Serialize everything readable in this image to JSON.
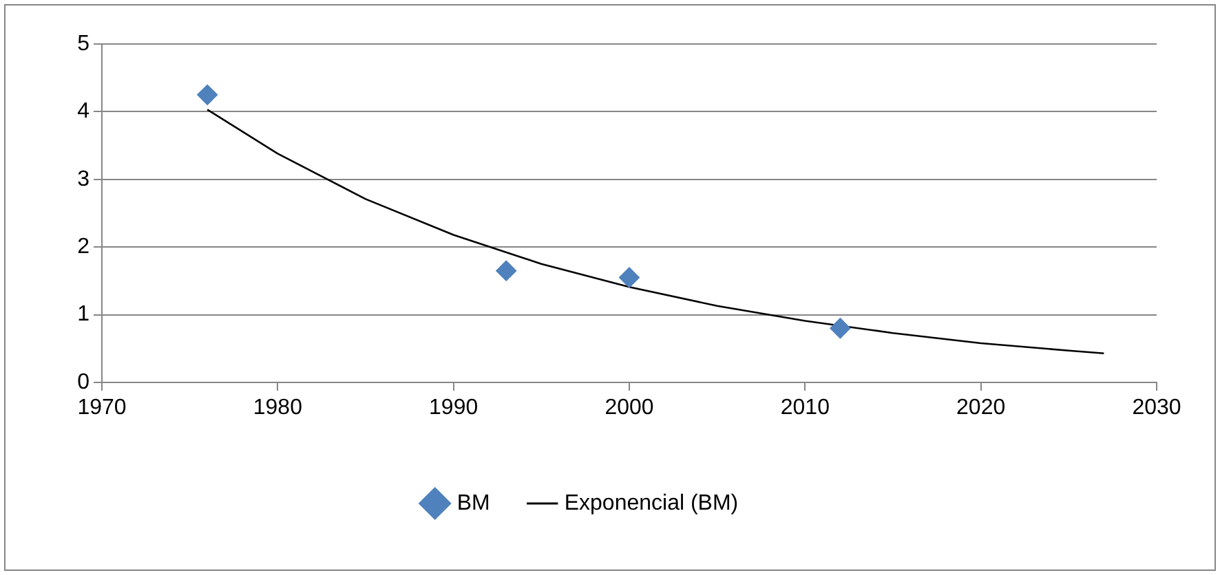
{
  "chart_data": {
    "type": "scatter",
    "xlim": [
      1970,
      2030
    ],
    "xticks": [
      1970,
      1980,
      1990,
      2000,
      2010,
      2020,
      2030
    ],
    "ylim": [
      0,
      5
    ],
    "yticks": [
      0,
      1,
      2,
      3,
      4,
      5
    ],
    "grid": "y",
    "legend": "bottom",
    "marker": "diamond",
    "series": [
      {
        "name": "BM",
        "type": "scatter",
        "color": "#4f81bd",
        "x": [
          1976,
          1993,
          2000,
          2012
        ],
        "values": [
          4.25,
          1.65,
          1.55,
          0.8
        ]
      },
      {
        "name": "Exponencial (BM)",
        "type": "line",
        "color": "#000000",
        "marker": "none",
        "line_style": "solid",
        "x": [
          1976,
          1980,
          1985,
          1990,
          1995,
          2000,
          2005,
          2010,
          2015,
          2020,
          2025,
          2027
        ],
        "values": [
          4.03,
          3.38,
          2.71,
          2.18,
          1.75,
          1.41,
          1.13,
          0.91,
          0.73,
          0.58,
          0.47,
          0.43
        ]
      }
    ]
  }
}
